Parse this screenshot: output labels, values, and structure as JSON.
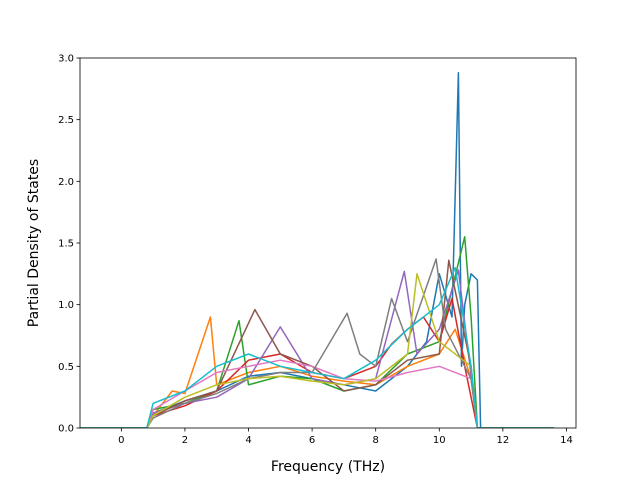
{
  "chart_data": {
    "type": "line",
    "title": "",
    "xlabel": "Frequency (THz)",
    "ylabel": "Partial Density of States",
    "xlim": [
      -1.3,
      14.3
    ],
    "ylim": [
      0.0,
      3.0
    ],
    "xticks": [
      0,
      2,
      4,
      6,
      8,
      10,
      12,
      14
    ],
    "yticks": [
      0.0,
      0.5,
      1.0,
      1.5,
      2.0,
      2.5,
      3.0
    ],
    "xtick_labels": [
      "0",
      "2",
      "4",
      "6",
      "8",
      "10",
      "12",
      "14"
    ],
    "ytick_labels": [
      "0.0",
      "0.5",
      "1.0",
      "1.5",
      "2.0",
      "2.5",
      "3.0"
    ],
    "grid": false,
    "legend": "none",
    "series": [
      {
        "color": "#1f77b4",
        "x": [
          -1.3,
          0.8,
          1.0,
          2.0,
          3.0,
          4.0,
          5.0,
          6.0,
          7.0,
          8.0,
          9.0,
          9.6,
          10.0,
          10.4,
          10.6,
          10.7,
          10.8,
          11.0,
          11.2,
          11.3,
          13.6
        ],
        "y": [
          0,
          0,
          0.12,
          0.22,
          0.3,
          0.42,
          0.45,
          0.4,
          0.35,
          0.3,
          0.5,
          0.7,
          1.25,
          0.9,
          2.88,
          0.5,
          1.0,
          1.25,
          1.2,
          0,
          0
        ]
      },
      {
        "color": "#ff7f0e",
        "x": [
          -1.3,
          0.8,
          1.0,
          1.6,
          2.0,
          2.8,
          3.0,
          4.0,
          5.0,
          6.0,
          7.0,
          8.0,
          9.0,
          10.0,
          10.5,
          11.0,
          11.2,
          13.6
        ],
        "y": [
          0,
          0,
          0.1,
          0.3,
          0.28,
          0.9,
          0.35,
          0.45,
          0.5,
          0.42,
          0.38,
          0.35,
          0.5,
          0.6,
          0.8,
          0.4,
          0,
          0
        ]
      },
      {
        "color": "#2ca02c",
        "x": [
          -1.3,
          0.8,
          1.0,
          2.0,
          3.0,
          3.7,
          4.0,
          5.0,
          6.0,
          7.0,
          8.0,
          9.0,
          10.0,
          10.8,
          11.0,
          11.2,
          13.6
        ],
        "y": [
          0,
          0,
          0.15,
          0.2,
          0.3,
          0.87,
          0.35,
          0.42,
          0.4,
          0.3,
          0.35,
          0.6,
          0.7,
          1.55,
          0.9,
          0,
          0
        ]
      },
      {
        "color": "#d62728",
        "x": [
          -1.3,
          0.8,
          1.0,
          2.0,
          3.0,
          4.0,
          5.0,
          6.0,
          7.0,
          8.0,
          8.5,
          9.0,
          9.5,
          10.0,
          10.4,
          10.8,
          11.2,
          13.6
        ],
        "y": [
          0,
          0,
          0.1,
          0.18,
          0.3,
          0.55,
          0.6,
          0.45,
          0.4,
          0.5,
          0.68,
          0.8,
          0.9,
          0.7,
          1.05,
          0.5,
          0,
          0
        ]
      },
      {
        "color": "#9467bd",
        "x": [
          -1.3,
          0.8,
          1.0,
          2.0,
          3.0,
          4.0,
          5.0,
          6.0,
          7.0,
          8.0,
          8.9,
          9.3,
          10.0,
          10.6,
          11.2,
          13.6
        ],
        "y": [
          0,
          0,
          0.12,
          0.2,
          0.25,
          0.4,
          0.82,
          0.4,
          0.35,
          0.4,
          1.27,
          0.6,
          0.8,
          1.28,
          0,
          0
        ]
      },
      {
        "color": "#8c564b",
        "x": [
          -1.3,
          0.8,
          1.0,
          2.0,
          3.0,
          4.2,
          5.0,
          6.0,
          7.0,
          8.0,
          9.0,
          10.0,
          10.3,
          11.0,
          11.2,
          13.6
        ],
        "y": [
          0,
          0,
          0.1,
          0.22,
          0.3,
          0.96,
          0.6,
          0.5,
          0.3,
          0.35,
          0.55,
          0.6,
          1.36,
          0.5,
          0,
          0
        ]
      },
      {
        "color": "#e377c2",
        "x": [
          -1.3,
          0.8,
          1.0,
          2.0,
          3.0,
          4.0,
          5.0,
          6.0,
          7.0,
          8.0,
          9.0,
          10.0,
          11.0,
          11.2,
          13.6
        ],
        "y": [
          0,
          0,
          0.15,
          0.3,
          0.45,
          0.5,
          0.55,
          0.5,
          0.4,
          0.38,
          0.45,
          0.5,
          0.4,
          0,
          0
        ]
      },
      {
        "color": "#7f7f7f",
        "x": [
          -1.3,
          0.8,
          1.0,
          2.0,
          3.0,
          4.0,
          5.0,
          6.0,
          7.1,
          7.5,
          8.0,
          8.5,
          9.0,
          9.9,
          10.2,
          11.0,
          11.2,
          13.6
        ],
        "y": [
          0,
          0,
          0.08,
          0.2,
          0.28,
          0.4,
          0.45,
          0.45,
          0.93,
          0.6,
          0.5,
          1.05,
          0.7,
          1.37,
          0.8,
          0.4,
          0,
          0
        ]
      },
      {
        "color": "#bcbd22",
        "x": [
          -1.3,
          0.8,
          1.0,
          2.0,
          3.0,
          4.0,
          5.0,
          6.0,
          7.0,
          8.0,
          9.0,
          9.3,
          10.0,
          11.0,
          11.2,
          13.6
        ],
        "y": [
          0,
          0,
          0.1,
          0.25,
          0.35,
          0.4,
          0.42,
          0.38,
          0.35,
          0.4,
          0.6,
          1.25,
          0.7,
          0.5,
          0,
          0
        ]
      },
      {
        "color": "#17becf",
        "x": [
          -1.3,
          0.8,
          1.0,
          2.0,
          3.0,
          4.0,
          5.0,
          6.0,
          7.0,
          8.0,
          9.0,
          10.0,
          10.5,
          11.0,
          11.2,
          13.6
        ],
        "y": [
          0,
          0,
          0.2,
          0.3,
          0.5,
          0.6,
          0.5,
          0.45,
          0.4,
          0.55,
          0.8,
          1.0,
          1.3,
          0.5,
          0,
          0
        ]
      }
    ]
  }
}
